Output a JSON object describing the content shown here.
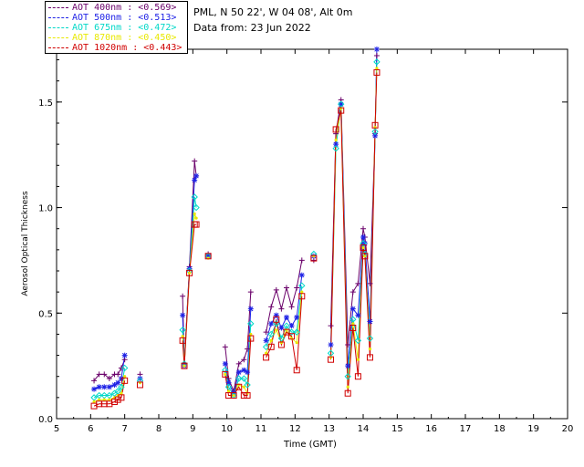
{
  "header": {
    "station": "PML, N 50 22', W 04 08', Alt 0m",
    "date_line": "Data from: 23 Jun 2022"
  },
  "legend": [
    {
      "label": "AOT  400nm : <0.569>",
      "color": "#6a006a"
    },
    {
      "label": "AOT  500nm : <0.513>",
      "color": "#1e22e6"
    },
    {
      "label": "AOT  675nm : <0.472>",
      "color": "#00d8c8"
    },
    {
      "label": "AOT  870nm : <0.450>",
      "color": "#e8e800"
    },
    {
      "label": "AOT 1020nm : <0.443>",
      "color": "#d00000"
    }
  ],
  "chart_data": {
    "type": "line",
    "title": "",
    "xlabel": "Time (GMT)",
    "ylabel": "Aerosol Optical Thickness",
    "xlim": [
      5,
      20
    ],
    "ylim": [
      0,
      1.75
    ],
    "x_ticks": [
      "5",
      "6",
      "7",
      "8",
      "9",
      "10",
      "11",
      "12",
      "13",
      "14",
      "15",
      "16",
      "17",
      "18",
      "19",
      "20"
    ],
    "y_ticks": [
      "0.0",
      "0.5",
      "1.0",
      "1.5"
    ],
    "x": [
      6.1,
      6.25,
      6.4,
      6.55,
      6.7,
      6.8,
      6.9,
      7.0,
      7.45,
      8.7,
      8.75,
      8.9,
      9.05,
      9.1,
      9.45,
      9.95,
      10.05,
      10.2,
      10.35,
      10.5,
      10.6,
      10.7,
      11.15,
      11.3,
      11.45,
      11.6,
      11.75,
      11.9,
      12.05,
      12.2,
      12.55,
      13.05,
      13.2,
      13.35,
      13.55,
      13.7,
      13.85,
      14.0,
      14.05,
      14.2,
      14.35,
      14.4
    ],
    "series": [
      {
        "name": "AOT  400nm",
        "values": [
          0.18,
          0.21,
          0.21,
          0.19,
          0.21,
          0.21,
          0.24,
          0.28,
          0.21,
          0.58,
          0.26,
          0.72,
          1.22,
          1.15,
          0.78,
          0.34,
          0.19,
          0.13,
          0.26,
          0.28,
          0.33,
          0.6,
          0.41,
          0.53,
          0.61,
          0.52,
          0.62,
          0.53,
          0.62,
          0.75,
          0.75,
          0.44,
          1.35,
          1.51,
          0.35,
          0.6,
          0.64,
          0.9,
          0.86,
          0.64,
          1.35,
          1.72
        ]
      },
      {
        "name": "AOT  500nm",
        "values": [
          0.14,
          0.15,
          0.15,
          0.15,
          0.16,
          0.17,
          0.19,
          0.3,
          0.19,
          0.49,
          0.25,
          0.71,
          1.13,
          1.15,
          0.77,
          0.26,
          0.17,
          0.12,
          0.22,
          0.23,
          0.22,
          0.52,
          0.37,
          0.45,
          0.49,
          0.43,
          0.48,
          0.44,
          0.48,
          0.68,
          0.77,
          0.35,
          1.3,
          1.49,
          0.25,
          0.52,
          0.49,
          0.86,
          0.83,
          0.46,
          1.34,
          1.75
        ]
      },
      {
        "name": "AOT  675nm",
        "values": [
          0.1,
          0.11,
          0.11,
          0.11,
          0.12,
          0.13,
          0.15,
          0.24,
          0.18,
          0.42,
          0.26,
          0.7,
          1.05,
          1.0,
          0.77,
          0.23,
          0.15,
          0.11,
          0.19,
          0.19,
          0.16,
          0.45,
          0.34,
          0.4,
          0.45,
          0.38,
          0.44,
          0.41,
          0.41,
          0.63,
          0.78,
          0.31,
          1.28,
          1.49,
          0.2,
          0.47,
          0.37,
          0.83,
          0.78,
          0.38,
          1.36,
          1.69
        ]
      },
      {
        "name": "AOT  870nm",
        "values": [
          0.08,
          0.09,
          0.09,
          0.09,
          0.1,
          0.11,
          0.12,
          0.2,
          0.17,
          0.39,
          0.25,
          0.69,
          0.97,
          0.95,
          0.76,
          0.21,
          0.13,
          0.11,
          0.16,
          0.15,
          0.12,
          0.4,
          0.31,
          0.37,
          0.42,
          0.36,
          0.42,
          0.38,
          0.36,
          0.6,
          0.77,
          0.29,
          1.32,
          1.47,
          0.15,
          0.45,
          0.28,
          0.81,
          0.77,
          0.33,
          1.38,
          1.66
        ]
      },
      {
        "name": "AOT 1020nm",
        "values": [
          0.06,
          0.07,
          0.07,
          0.07,
          0.08,
          0.09,
          0.1,
          0.18,
          0.16,
          0.37,
          0.25,
          0.69,
          0.92,
          0.92,
          0.77,
          0.21,
          0.11,
          0.11,
          0.15,
          0.11,
          0.11,
          0.38,
          0.29,
          0.34,
          0.47,
          0.35,
          0.41,
          0.39,
          0.23,
          0.58,
          0.76,
          0.28,
          1.37,
          1.46,
          0.12,
          0.43,
          0.2,
          0.81,
          0.77,
          0.29,
          1.39,
          1.64
        ]
      }
    ],
    "colors": [
      "#6a006a",
      "#1e22e6",
      "#00d8c8",
      "#e8e800",
      "#d00000"
    ]
  }
}
